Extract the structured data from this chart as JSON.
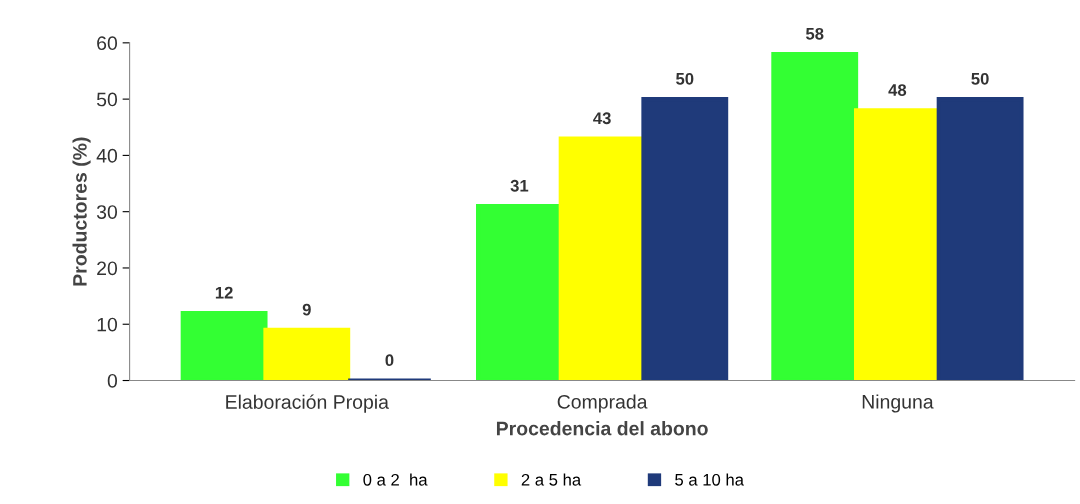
{
  "chart_data": {
    "type": "bar",
    "xlabel": "Procedencia del abono",
    "ylabel": "Productores (%)",
    "categories": [
      "Elaboración Propia",
      "Comprada",
      "Ninguna"
    ],
    "series": [
      {
        "name": "0 a 2  ha",
        "color": "#33ff33",
        "values": [
          12,
          31,
          58
        ]
      },
      {
        "name": "2 a 5 ha",
        "color": "#ffff00",
        "values": [
          9,
          43,
          48
        ]
      },
      {
        "name": "5 a 10 ha",
        "color": "#1f3a7a",
        "values": [
          0,
          50,
          50
        ]
      }
    ],
    "ylim": [
      0,
      60
    ],
    "yticks": [
      0,
      10,
      20,
      30,
      40,
      50,
      60
    ],
    "grid": false,
    "legend": "bottom",
    "data_labels": true
  }
}
